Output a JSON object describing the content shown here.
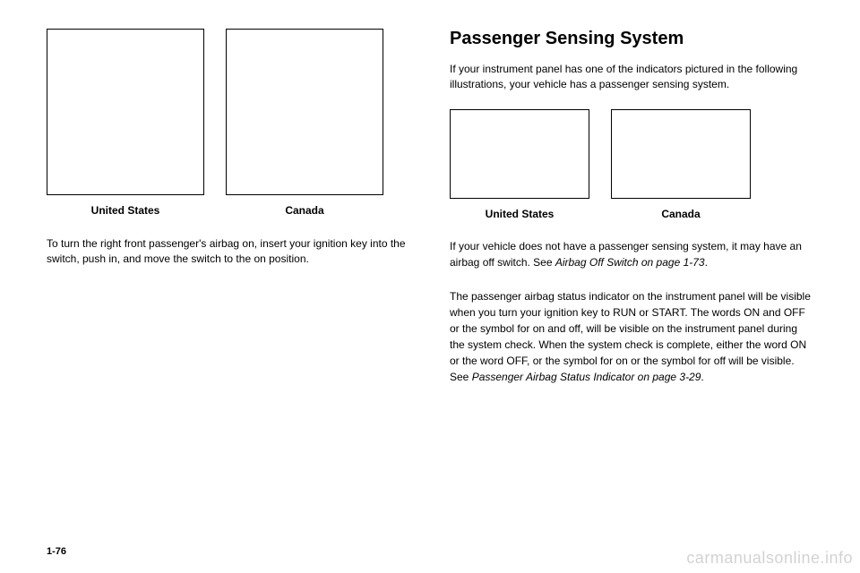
{
  "left": {
    "figs": [
      {
        "caption": "United States"
      },
      {
        "caption": "Canada"
      }
    ],
    "body": "To turn the right front passenger's airbag on, insert your ignition key into the switch, push in, and move the switch to the on position."
  },
  "right": {
    "heading": "Passenger Sensing System",
    "intro": "If your instrument panel has one of the indicators pictured in the following illustrations, your vehicle has a passenger sensing system.",
    "figs": [
      {
        "caption": "United States"
      },
      {
        "caption": "Canada"
      }
    ],
    "para1_a": "If your vehicle does not have a passenger sensing system, it may have an airbag off switch. See ",
    "para1_ital": "Airbag Off Switch on page 1-73",
    "para1_b": ".",
    "para2_a": "The passenger airbag status indicator on the instrument panel will be visible when you turn your ignition key to RUN or START. The words ON and OFF or the symbol for on and off, will be visible on the instrument panel during the system check. When the system check is complete, either the word ON or the word OFF, or the symbol for on or the symbol for off will be visible. See ",
    "para2_ital": "Passenger Airbag Status Indicator on page 3-29",
    "para2_b": "."
  },
  "footer": "1-76",
  "watermark": "carmanualsonline.info"
}
